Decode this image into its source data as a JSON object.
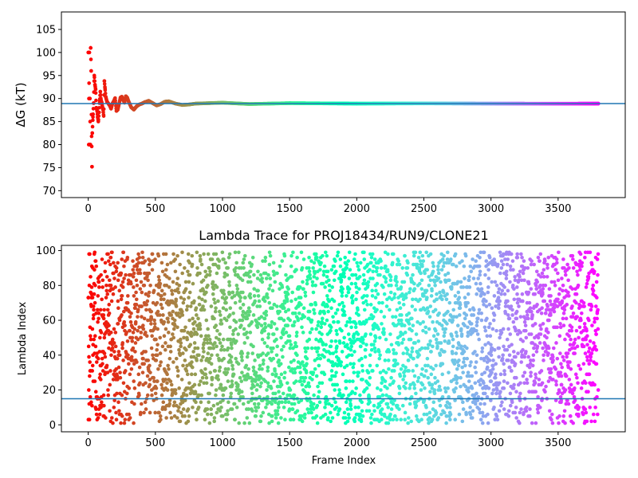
{
  "chart_data": [
    {
      "type": "scatter",
      "title": "",
      "xlabel": "",
      "ylabel": "ΔG (kT)",
      "xlim": [
        -200,
        4000
      ],
      "ylim": [
        68.5,
        108.8
      ],
      "xticks": [
        0,
        500,
        1000,
        1500,
        2000,
        2500,
        3000,
        3500
      ],
      "yticks": [
        70,
        75,
        80,
        85,
        90,
        95,
        100,
        105
      ],
      "hline": 88.9,
      "hline_color": "#1f77b4",
      "colormap": "rainbow",
      "x_range": [
        0,
        3800
      ],
      "grid": false,
      "legend": "none",
      "series": [
        {
          "points": [
            [
              2,
              100
            ],
            [
              8,
              100
            ],
            [
              18,
              101
            ],
            [
              22,
              96
            ],
            [
              12,
              90
            ],
            [
              5,
              90
            ],
            [
              4,
              80
            ],
            [
              10,
              80
            ],
            [
              16,
              80
            ],
            [
              25,
              81.8
            ],
            [
              30,
              82.5
            ],
            [
              28,
              75.2
            ],
            [
              35,
              86
            ],
            [
              40,
              89
            ],
            [
              45,
              95
            ],
            [
              50,
              93
            ],
            [
              55,
              92
            ],
            [
              60,
              88
            ],
            [
              65,
              87.5
            ],
            [
              70,
              86
            ],
            [
              75,
              85
            ],
            [
              80,
              87
            ],
            [
              85,
              89.5
            ],
            [
              90,
              91.5
            ],
            [
              95,
              89.7
            ],
            [
              100,
              89.2
            ],
            [
              105,
              88.3
            ],
            [
              110,
              87.6
            ],
            [
              115,
              86.2
            ],
            [
              120,
              93.8
            ],
            [
              125,
              92.2
            ],
            [
              130,
              90.4
            ],
            [
              140,
              89.3
            ],
            [
              150,
              88.9
            ],
            [
              160,
              88.5
            ],
            [
              170,
              87.8
            ],
            [
              180,
              88.9
            ],
            [
              190,
              89.4
            ],
            [
              200,
              90.1
            ],
            [
              210,
              87.3
            ],
            [
              220,
              87.6
            ],
            [
              230,
              88.9
            ],
            [
              240,
              90.2
            ],
            [
              250,
              90.4
            ],
            [
              260,
              89.7
            ],
            [
              270,
              89.1
            ],
            [
              280,
              90.5
            ],
            [
              290,
              90.2
            ],
            [
              300,
              89.4
            ],
            [
              320,
              88.1
            ],
            [
              340,
              87.6
            ],
            [
              360,
              88.3
            ],
            [
              380,
              88.7
            ],
            [
              400,
              88.9
            ],
            [
              420,
              89.2
            ],
            [
              450,
              89.5
            ],
            [
              480,
              89.0
            ],
            [
              510,
              88.5
            ],
            [
              540,
              88.8
            ],
            [
              570,
              89.3
            ],
            [
              600,
              89.4
            ],
            [
              650,
              88.9
            ],
            [
              700,
              88.6
            ],
            [
              750,
              88.7
            ],
            [
              800,
              88.9
            ],
            [
              900,
              89.0
            ],
            [
              1000,
              89.1
            ],
            [
              1200,
              88.8
            ],
            [
              1500,
              89.0
            ],
            [
              2000,
              88.9
            ],
            [
              2500,
              88.95
            ],
            [
              3000,
              88.9
            ],
            [
              3500,
              88.88
            ],
            [
              3800,
              88.9
            ]
          ]
        }
      ]
    },
    {
      "type": "scatter",
      "title": "Lambda Trace for PROJ18434/RUN9/CLONE21",
      "xlabel": "Frame Index",
      "ylabel": "Lambda Index",
      "xlim": [
        -200,
        4000
      ],
      "ylim": [
        -4,
        103
      ],
      "xticks": [
        0,
        500,
        1000,
        1500,
        2000,
        2500,
        3000,
        3500
      ],
      "yticks": [
        0,
        20,
        40,
        60,
        80,
        100
      ],
      "hline": 15,
      "hline_color": "#1f77b4",
      "colormap": "rainbow",
      "x_range": [
        0,
        3800
      ],
      "lambda_range": [
        1,
        99
      ],
      "n_points": 3800,
      "grid": false,
      "legend": "none"
    }
  ]
}
